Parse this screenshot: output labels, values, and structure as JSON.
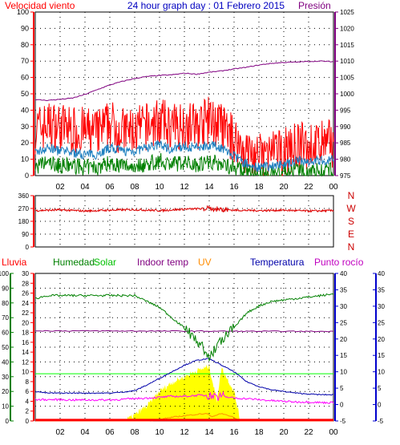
{
  "colors": {
    "wind": "#ff0000",
    "gust": "#ff0000",
    "avg": "#2080c0",
    "wind_base": "#008000",
    "pressure": "#800080",
    "direction": "#dd0000",
    "humidity": "#008000",
    "solar": "#ffff00",
    "indoor": "#800080",
    "uv": "#ff8c00",
    "temp": "#0000aa",
    "dew": "#ff00ff",
    "rain": "#ff0000",
    "solar_line": "#00ff00",
    "title": "#0000c0",
    "grid": "#000000"
  },
  "chart_data": [
    {
      "type": "line",
      "title": "24 hour graph day : 01 Febrero 2015",
      "left_label": "Velocidad viento",
      "right_label": "Presión",
      "x_ticks": [
        "02",
        "04",
        "06",
        "08",
        "10",
        "12",
        "14",
        "16",
        "18",
        "20",
        "22",
        "00"
      ],
      "ylim": [
        0,
        100
      ],
      "y_ticks": [
        "0",
        "10",
        "20",
        "30",
        "40",
        "50",
        "60",
        "70",
        "80",
        "90",
        "100"
      ],
      "y2lim": [
        975,
        1025
      ],
      "y2_ticks": [
        "975",
        "980",
        "985",
        "990",
        "995",
        "1000",
        "1005",
        "1010",
        "1015",
        "1020",
        "1025"
      ],
      "series": [
        {
          "name": "Velocidad viento",
          "x": [
            0,
            1,
            2,
            3,
            4,
            5,
            6,
            7,
            8,
            9,
            10,
            11,
            12,
            13,
            14,
            15,
            16,
            17,
            18,
            19,
            20,
            21,
            22,
            23,
            24
          ],
          "values": [
            28,
            31,
            30,
            28,
            27,
            26,
            32,
            27,
            27,
            30,
            33,
            29,
            32,
            30,
            34,
            30,
            22,
            14,
            11,
            13,
            14,
            18,
            18,
            19,
            20
          ]
        },
        {
          "name": "avg",
          "x": [
            0,
            1,
            2,
            3,
            4,
            5,
            6,
            7,
            8,
            9,
            10,
            11,
            12,
            13,
            14,
            15,
            16,
            17,
            18,
            19,
            20,
            21,
            22,
            23,
            24
          ],
          "values": [
            14,
            17,
            15,
            14,
            13,
            13,
            17,
            15,
            15,
            17,
            19,
            16,
            18,
            17,
            19,
            17,
            12,
            7,
            5,
            6,
            7,
            9,
            9,
            9,
            10
          ]
        },
        {
          "name": "base",
          "x": [
            0,
            1,
            2,
            3,
            4,
            5,
            6,
            7,
            8,
            9,
            10,
            11,
            12,
            13,
            14,
            15,
            16,
            17,
            18,
            19,
            20,
            21,
            22,
            23,
            24
          ],
          "values": [
            5,
            8,
            6,
            6,
            5,
            5,
            8,
            6,
            6,
            7,
            9,
            7,
            8,
            7,
            9,
            7,
            5,
            2,
            1,
            1,
            2,
            3,
            3,
            3,
            3
          ]
        },
        {
          "name": "Presión",
          "x": [
            0,
            1,
            2,
            3,
            4,
            5,
            6,
            7,
            8,
            9,
            10,
            11,
            12,
            13,
            14,
            15,
            16,
            17,
            18,
            19,
            20,
            21,
            22,
            23,
            24
          ],
          "values": [
            998.2,
            998.0,
            998.3,
            998.7,
            999.8,
            1001.3,
            1002.7,
            1003.8,
            1004.7,
            1005.3,
            1005.6,
            1005.8,
            1006.3,
            1006.0,
            1006.6,
            1007.0,
            1007.6,
            1008.1,
            1008.8,
            1009.3,
            1009.6,
            1009.7,
            1009.9,
            1010.0,
            1009.8
          ]
        }
      ]
    },
    {
      "type": "line",
      "ylim": [
        0,
        360
      ],
      "y_ticks": [
        "0",
        "90",
        "180",
        "270",
        "360"
      ],
      "direction_labels": [
        "N",
        "W",
        "S",
        "E",
        "N"
      ],
      "series": [
        {
          "name": "direction",
          "x": [
            0,
            2,
            4,
            6,
            8,
            10,
            12,
            14,
            16,
            18,
            20,
            22,
            24
          ],
          "values": [
            255,
            260,
            252,
            258,
            262,
            255,
            265,
            270,
            258,
            255,
            258,
            252,
            255
          ]
        }
      ]
    },
    {
      "type": "line",
      "labels": {
        "rain": "Lluvia",
        "humidity": "Humedad",
        "solar": "Solar",
        "indoor": "Indoor temp",
        "uv": "UV",
        "temp": "Temperatura",
        "dew": "Punto rocío"
      },
      "x_ticks": [
        "02",
        "04",
        "06",
        "08",
        "10",
        "12",
        "14",
        "16",
        "18",
        "20",
        "22",
        "00"
      ],
      "ylim": [
        0,
        100
      ],
      "y_ticks": [
        "0",
        "10",
        "20",
        "30",
        "40",
        "50",
        "60",
        "70",
        "80",
        "90",
        "100"
      ],
      "y2_ticks": [
        "0",
        "2",
        "4",
        "6",
        "8",
        "10",
        "12",
        "14",
        "16",
        "18",
        "20",
        "22",
        "24",
        "26",
        "28",
        "30"
      ],
      "y3lim": [
        -5,
        40
      ],
      "y3_ticks": [
        "-5",
        "0",
        "5",
        "10",
        "15",
        "20",
        "25",
        "30",
        "35",
        "40"
      ],
      "series": [
        {
          "name": "Humedad",
          "x": [
            0,
            1,
            2,
            3,
            4,
            5,
            6,
            7,
            8,
            9,
            10,
            11,
            12,
            13,
            14,
            15,
            16,
            17,
            18,
            19,
            20,
            21,
            22,
            23,
            24
          ],
          "values": [
            83,
            85,
            85,
            85,
            85,
            85,
            85,
            85,
            85,
            81,
            77,
            70,
            63,
            55,
            43,
            55,
            63,
            73,
            78,
            81,
            82,
            83,
            84,
            85,
            86
          ]
        },
        {
          "name": "Temperatura",
          "x": [
            0,
            1,
            2,
            3,
            4,
            5,
            6,
            7,
            8,
            9,
            10,
            11,
            12,
            13,
            14,
            15,
            16,
            17,
            18,
            19,
            20,
            21,
            22,
            23,
            24
          ],
          "values": [
            4,
            3.5,
            3.5,
            3.5,
            3.5,
            3.5,
            3.5,
            3.8,
            4.2,
            6,
            8,
            10,
            12,
            13.5,
            14,
            12,
            10,
            7,
            5.5,
            4.5,
            4,
            3.5,
            3.2,
            3,
            3
          ]
        },
        {
          "name": "Punto rocío",
          "x": [
            0,
            1,
            2,
            3,
            4,
            5,
            6,
            7,
            8,
            9,
            10,
            11,
            12,
            13,
            14,
            15,
            16,
            17,
            18,
            19,
            20,
            21,
            22,
            23,
            24
          ],
          "values": [
            1.5,
            1.5,
            1.5,
            1.4,
            1.4,
            1.4,
            1.4,
            1.6,
            1.8,
            2,
            2.2,
            2.5,
            2.5,
            2.8,
            2.8,
            2.5,
            2,
            1.8,
            1.5,
            1.2,
            1,
            0.8,
            0.8,
            0.6,
            0.6
          ]
        },
        {
          "name": "Indoor temp",
          "x": [
            0,
            24
          ],
          "values": [
            22.5,
            22.3
          ]
        },
        {
          "name": "solar_ref",
          "x": [
            0,
            24
          ],
          "values": [
            32,
            32
          ]
        },
        {
          "name": "Solar",
          "x": [
            0,
            7,
            7.6,
            8.2,
            8.6,
            9,
            10,
            11,
            12,
            13,
            14,
            14.6,
            15,
            16,
            16.5,
            24
          ],
          "values": [
            0,
            0,
            2,
            5,
            8,
            10,
            20,
            26,
            30,
            34,
            37,
            14,
            36,
            20,
            0,
            0
          ]
        },
        {
          "name": "UV",
          "x": [
            0,
            9,
            10,
            11,
            12,
            13,
            13.8,
            14.2,
            15,
            15.8,
            16.5,
            24
          ],
          "values": [
            0,
            0,
            1,
            2.5,
            3.5,
            4.5,
            5,
            3,
            5,
            3,
            0,
            0
          ]
        },
        {
          "name": "Lluvia",
          "x": [
            0,
            24
          ],
          "values": [
            0.6,
            0.6
          ]
        }
      ]
    }
  ]
}
